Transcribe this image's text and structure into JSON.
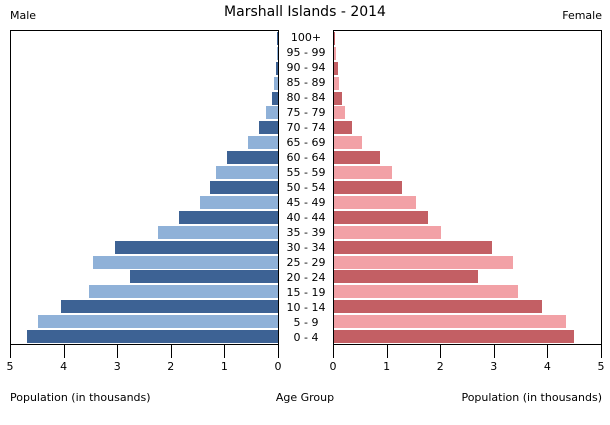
{
  "header": {
    "title": "Marshall Islands - 2014",
    "male": "Male",
    "female": "Female"
  },
  "footer": {
    "left_label": "Population (in thousands)",
    "center_label": "Age Group",
    "right_label": "Population (in thousands)"
  },
  "colors": {
    "male_dark": "#3d6294",
    "male_light": "#8fb1d8",
    "female_dark": "#c35f64",
    "female_light": "#f2a1a6",
    "axis": "#000000",
    "background": "#ffffff"
  },
  "axis": {
    "male_tick_labels": [
      "5",
      "4",
      "3",
      "2",
      "1",
      "0"
    ],
    "female_tick_labels": [
      "0",
      "1",
      "2",
      "3",
      "4",
      "5"
    ],
    "max_value": 5
  },
  "chart_data": {
    "type": "bar",
    "orientation": "horizontal population pyramid, male left (axis reversed), female right",
    "title": "Marshall Islands - 2014",
    "xlabel": "Population (in thousands)",
    "ylabel": "Age Group",
    "xlim": [
      0,
      5
    ],
    "grid": false,
    "categories_top_to_bottom": [
      "100+",
      "95 - 99",
      "90 - 94",
      "85 - 89",
      "80 - 84",
      "75 - 79",
      "70 - 74",
      "65 - 69",
      "60 - 64",
      "55 - 59",
      "50 - 54",
      "45 - 49",
      "40 - 44",
      "35 - 39",
      "30 - 34",
      "25 - 29",
      "20 - 24",
      "15 - 19",
      "10 - 14",
      "5 - 9",
      "0 - 4"
    ],
    "series": [
      {
        "name": "Male",
        "values": [
          0.01,
          0.02,
          0.03,
          0.07,
          0.12,
          0.22,
          0.36,
          0.57,
          0.95,
          1.17,
          1.27,
          1.47,
          1.85,
          2.25,
          3.06,
          3.46,
          2.77,
          3.54,
          4.06,
          4.5,
          4.7
        ]
      },
      {
        "name": "Female",
        "values": [
          0.01,
          0.04,
          0.07,
          0.1,
          0.15,
          0.21,
          0.34,
          0.53,
          0.87,
          1.08,
          1.27,
          1.54,
          1.76,
          2.0,
          2.96,
          3.35,
          2.7,
          3.45,
          3.9,
          4.35,
          4.5
        ]
      }
    ]
  }
}
